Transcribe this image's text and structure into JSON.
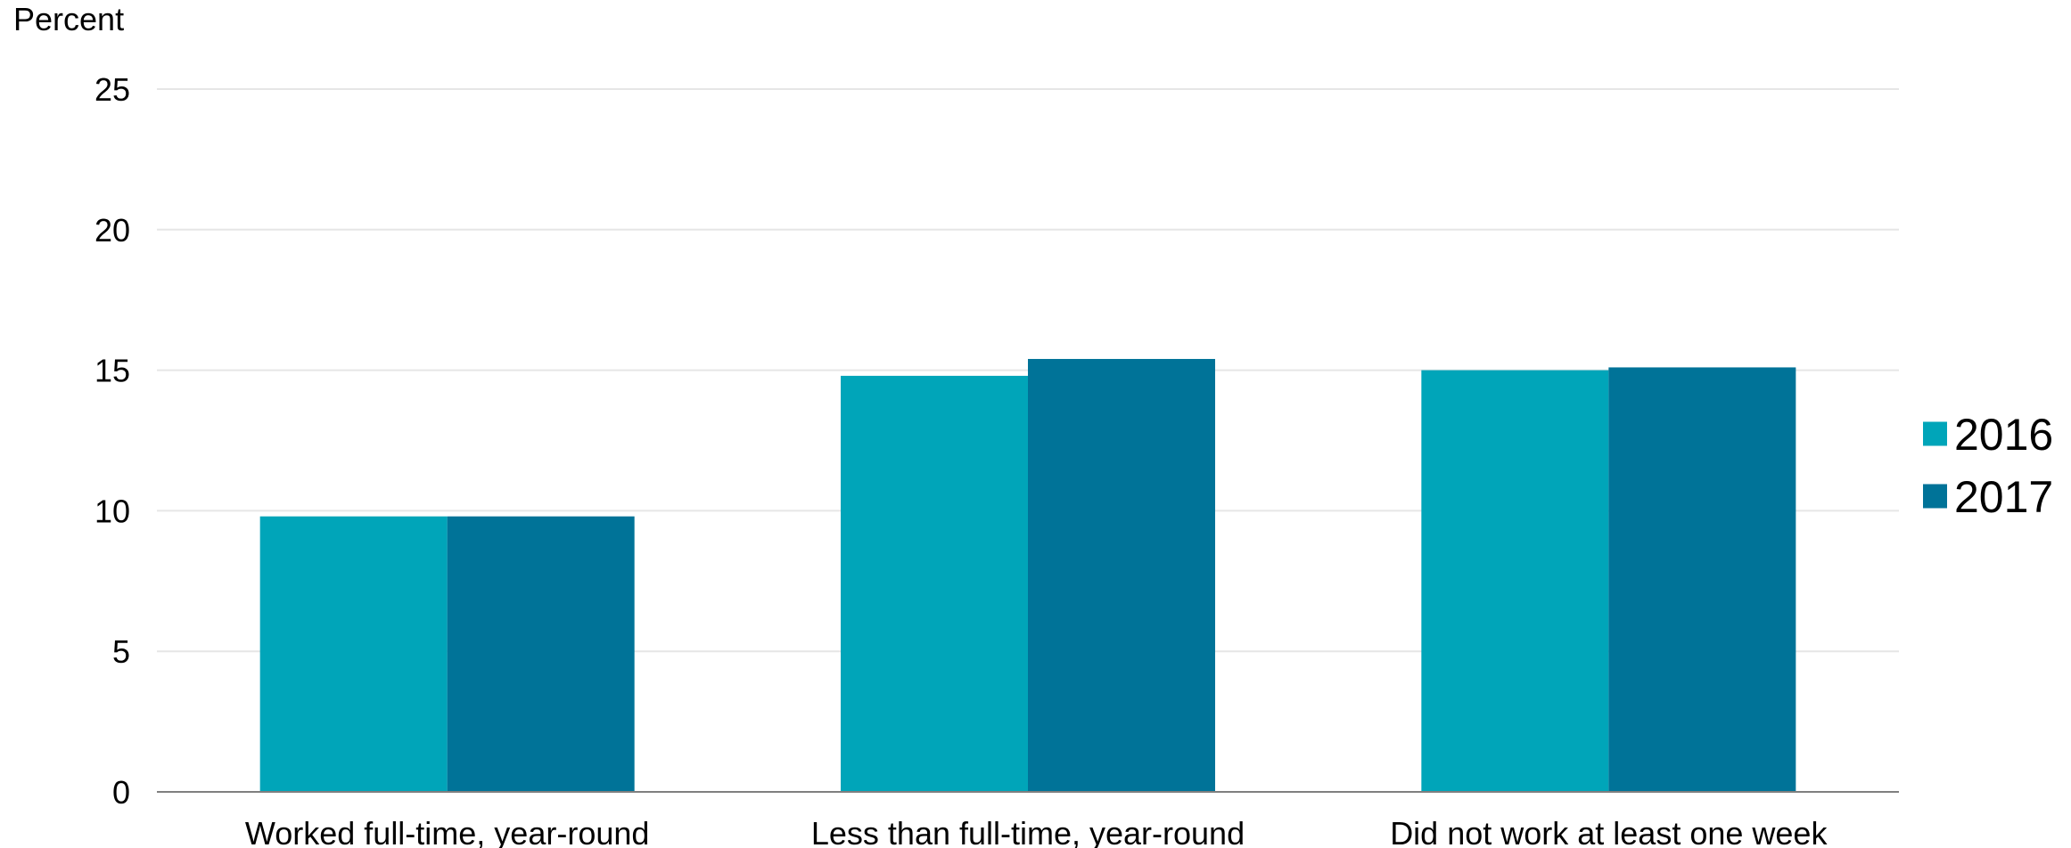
{
  "chart_data": {
    "type": "bar",
    "ylabel": "Percent",
    "categories": [
      "Worked full-time, year-round",
      "Less than full-time, year-round",
      "Did not work at least one week"
    ],
    "series": [
      {
        "name": "2016",
        "values": [
          9.8,
          14.8,
          15.0
        ],
        "color": "#00A5B9"
      },
      {
        "name": "2017",
        "values": [
          9.8,
          15.4,
          15.1
        ],
        "color": "#007398"
      }
    ],
    "ylim": [
      0,
      25
    ],
    "yticks": [
      "0",
      "5",
      "10",
      "15",
      "20",
      "25"
    ],
    "grid": true,
    "legend": "right"
  }
}
